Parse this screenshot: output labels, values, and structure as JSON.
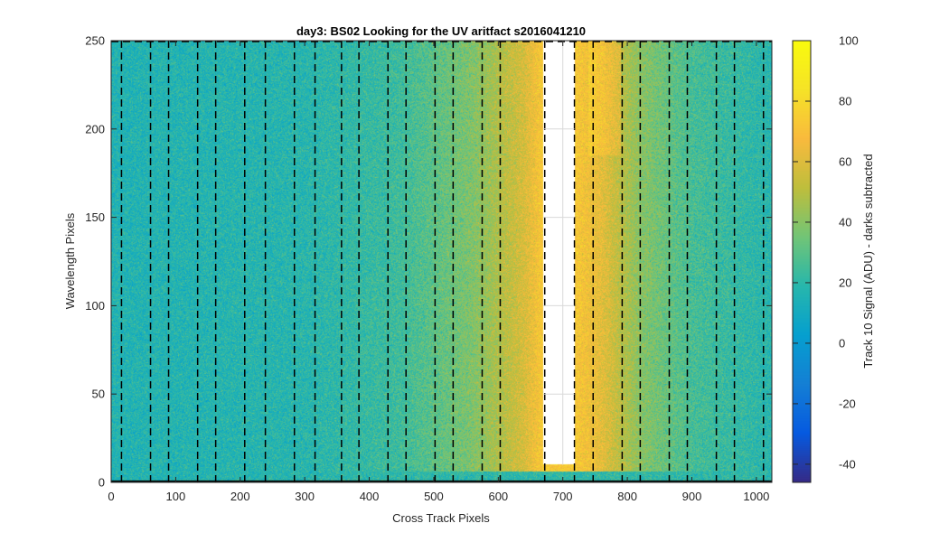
{
  "chart_data": {
    "type": "heatmap",
    "title": "day3: BS02  Looking for the UV aritfact  s2016041210",
    "xlabel": "Cross Track Pixels",
    "ylabel": "Wavelength Pixels",
    "colorbar_label": "Track 10 Signal (ADU) - darks subtracted",
    "xlim": [
      0,
      1024
    ],
    "ylim": [
      0,
      250
    ],
    "clim": [
      -46,
      100
    ],
    "colormap": "parula",
    "grid": true,
    "x_ticks": [
      0,
      100,
      200,
      300,
      400,
      500,
      600,
      700,
      800,
      900,
      1000
    ],
    "y_ticks": [
      0,
      50,
      100,
      150,
      200,
      250
    ],
    "colorbar_ticks": [
      -40,
      -20,
      0,
      20,
      40,
      60,
      80,
      100
    ],
    "dashed_column_markers_x": [
      16,
      61,
      89,
      134,
      162,
      207,
      239,
      284,
      316,
      357,
      384,
      429,
      457,
      502,
      530,
      575,
      603,
      672,
      718,
      747,
      792,
      820,
      865,
      893,
      938,
      966,
      1011
    ],
    "saturated_region": {
      "x": [
        670,
        718
      ],
      "y_from": 10,
      "y_to": 250,
      "color": "#ffffff"
    },
    "signal_profile": [
      {
        "x": 0,
        "level": 16
      },
      {
        "x": 300,
        "level": 18
      },
      {
        "x": 450,
        "level": 24
      },
      {
        "x": 560,
        "level": 38
      },
      {
        "x": 640,
        "level": 58
      },
      {
        "x": 668,
        "level": 72
      },
      {
        "x": 720,
        "level": 72
      },
      {
        "x": 760,
        "level": 62
      },
      {
        "x": 820,
        "level": 40
      },
      {
        "x": 900,
        "level": 26
      },
      {
        "x": 1024,
        "level": 18
      }
    ]
  }
}
